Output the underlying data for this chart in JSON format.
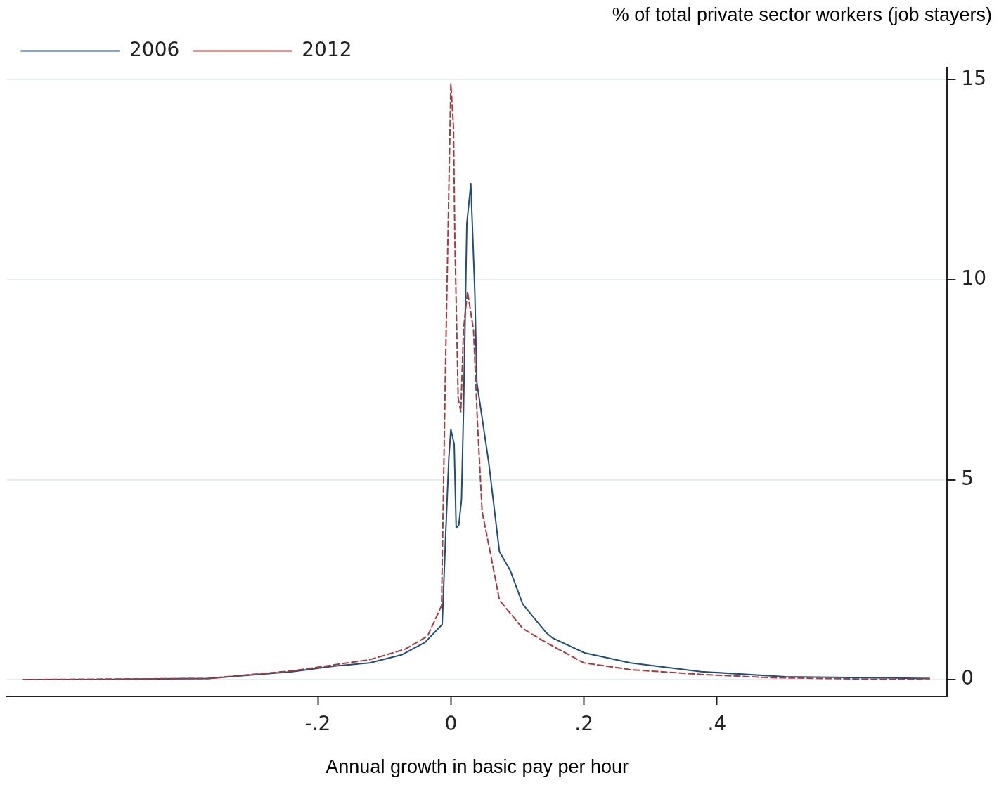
{
  "chart_data": {
    "type": "line",
    "xlabel": "Annual growth in basic pay per hour",
    "ylabel": "% of total private sector workers (job stayers)",
    "xlim": [
      -0.667,
      0.746
    ],
    "ylim": [
      -0.42,
      15.3
    ],
    "xticks": [
      {
        "value": -0.2,
        "label": "-.2"
      },
      {
        "value": 0,
        "label": "0"
      },
      {
        "value": 0.2,
        "label": ".2"
      },
      {
        "value": 0.4,
        "label": ".4"
      }
    ],
    "yticks": [
      0,
      5,
      10,
      15
    ],
    "grid": "y",
    "legend": "top left",
    "marker": "none",
    "series": [
      {
        "name": "2006",
        "color": "#1f4e79",
        "line_style": "solid",
        "x": [
          -0.643,
          -0.54,
          -0.365,
          -0.238,
          -0.175,
          -0.122,
          -0.074,
          -0.039,
          -0.013,
          -0.008,
          -0.003,
          0,
          0.005,
          0.008,
          0.012,
          0.016,
          0.019,
          0.024,
          0.03,
          0.036,
          0.039,
          0.057,
          0.073,
          0.089,
          0.108,
          0.143,
          0.153,
          0.201,
          0.27,
          0.376,
          0.503,
          0.72
        ],
        "values": [
          0,
          0,
          0.03,
          0.2,
          0.34,
          0.42,
          0.62,
          0.93,
          1.38,
          3.54,
          5.56,
          6.26,
          5.89,
          3.79,
          3.87,
          4.5,
          6.7,
          11.4,
          12.4,
          9.7,
          7.44,
          5.42,
          3.2,
          2.74,
          1.89,
          1.18,
          1.04,
          0.67,
          0.42,
          0.2,
          0.07,
          0.03
        ]
      },
      {
        "name": "2012",
        "color": "#a83a3f",
        "line_style": "dashed",
        "x": [
          -0.643,
          -0.365,
          -0.238,
          -0.122,
          -0.069,
          -0.035,
          -0.014,
          -0.012,
          -0.008,
          0,
          0.004,
          0.006,
          0.011,
          0.015,
          0.019,
          0.025,
          0.034,
          0.04,
          0.047,
          0.059,
          0.073,
          0.108,
          0.143,
          0.2,
          0.27,
          0.376,
          0.48,
          0.68,
          0.72
        ],
        "values": [
          0,
          0.03,
          0.22,
          0.5,
          0.76,
          1.09,
          1.85,
          3.87,
          7.9,
          14.9,
          13.8,
          11,
          7.04,
          6.7,
          8.75,
          9.7,
          8.75,
          6.43,
          4.2,
          3.2,
          1.99,
          1.28,
          0.93,
          0.42,
          0.25,
          0.13,
          0.05,
          0,
          0.03
        ]
      }
    ]
  }
}
